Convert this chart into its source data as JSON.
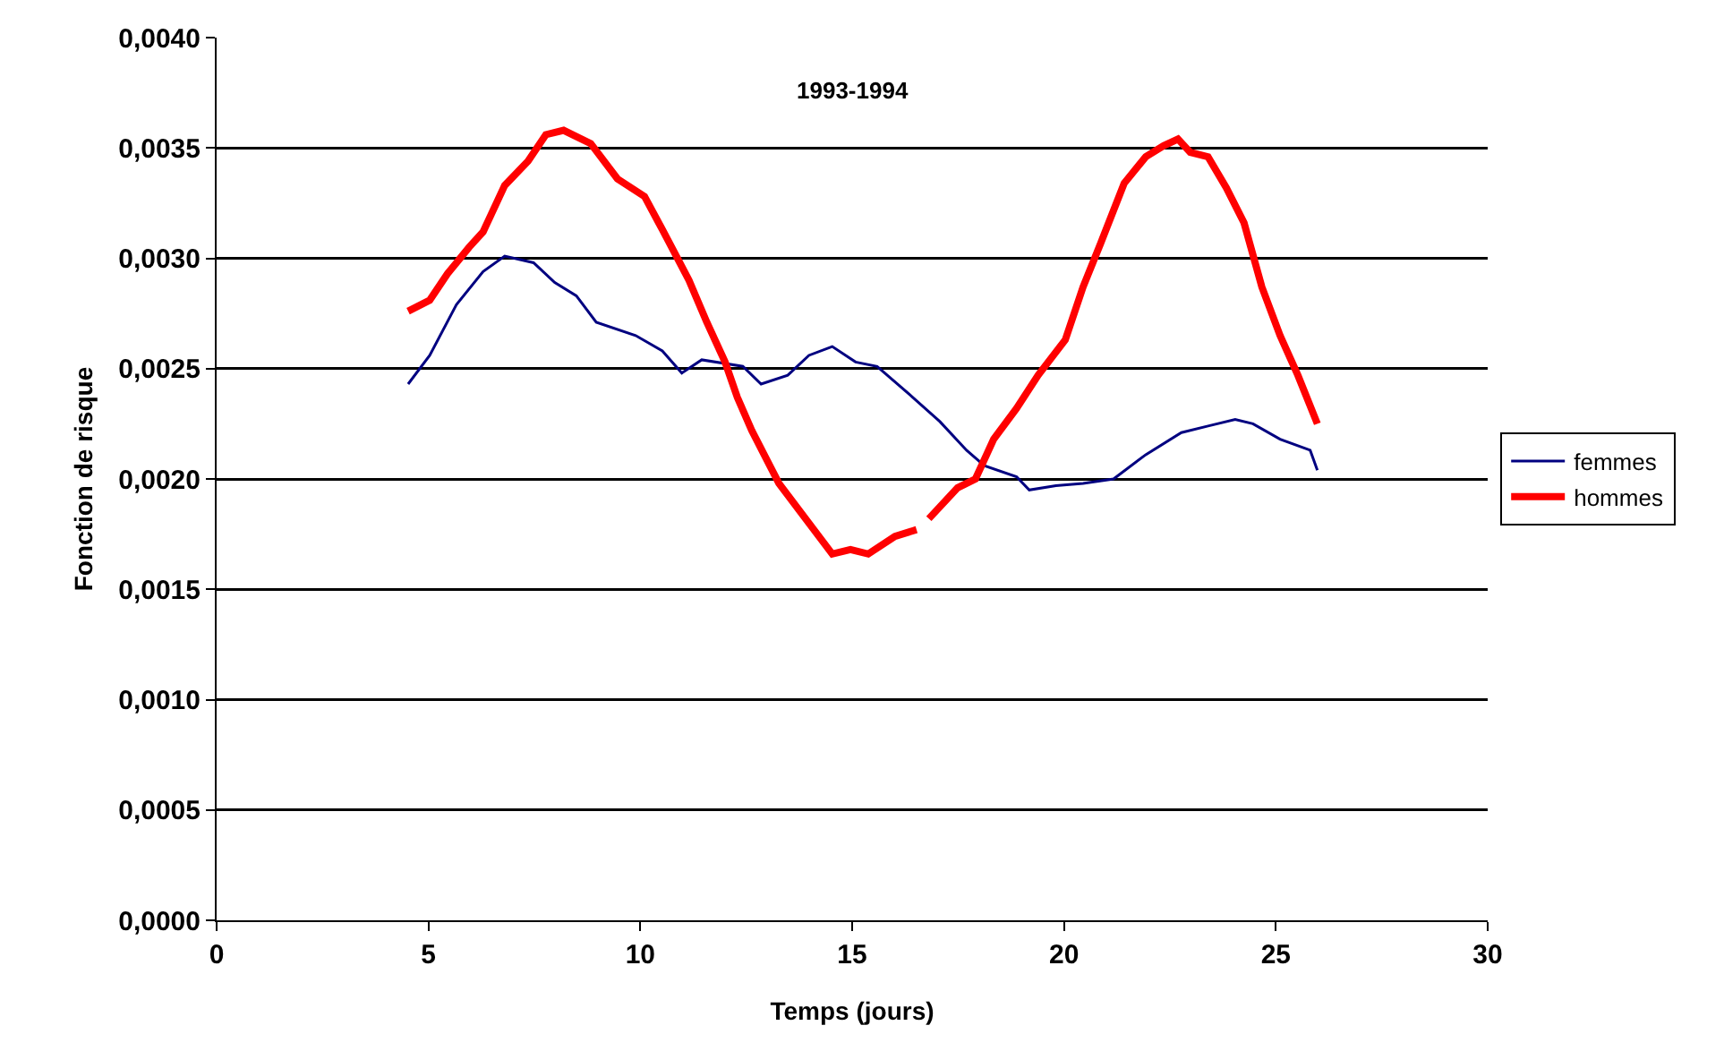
{
  "chart_data": {
    "type": "line",
    "title": "1993-1994",
    "xlabel": "Temps (jours)",
    "ylabel": "Fonction de risque",
    "xlim": [
      0,
      30
    ],
    "xticks": [
      0,
      5,
      10,
      15,
      20,
      25,
      30
    ],
    "ylim": [
      0,
      0.004
    ],
    "yticks": [
      {
        "value": 0,
        "label": "0,0000"
      },
      {
        "value": 0.0005,
        "label": "0,0005"
      },
      {
        "value": 0.001,
        "label": "0,0010"
      },
      {
        "value": 0.0015,
        "label": "0,0015"
      },
      {
        "value": 0.002,
        "label": "0,0020"
      },
      {
        "value": 0.0025,
        "label": "0,0025"
      },
      {
        "value": 0.003,
        "label": "0,0030"
      },
      {
        "value": 0.0035,
        "label": "0,0035"
      },
      {
        "value": 0.004,
        "label": "0,0040"
      }
    ],
    "grid": "y",
    "legend": "right",
    "marker": "none",
    "line_style": "solid",
    "series": [
      {
        "name": "femmes",
        "color": "#000080",
        "x": [
          4.52,
          5.03,
          5.66,
          6.29,
          6.8,
          7.48,
          7.98,
          8.49,
          8.96,
          9.89,
          10.52,
          10.98,
          11.45,
          12.42,
          12.85,
          13.48,
          13.98,
          14.53,
          15.08,
          15.59,
          16.43,
          17.07,
          17.7,
          18.12,
          18.88,
          19.18,
          19.81,
          20.45,
          21.17,
          21.93,
          22.77,
          23.4,
          24.04,
          24.46,
          25.1,
          25.81,
          25.98
        ],
        "values": [
          0.00243,
          0.00256,
          0.00279,
          0.00294,
          0.00301,
          0.00298,
          0.00289,
          0.00283,
          0.00271,
          0.00265,
          0.00258,
          0.00248,
          0.00254,
          0.00251,
          0.00243,
          0.00247,
          0.00256,
          0.0026,
          0.00253,
          0.00251,
          0.00237,
          0.00226,
          0.00213,
          0.00206,
          0.00201,
          0.00195,
          0.00197,
          0.00198,
          0.002,
          0.00211,
          0.00221,
          0.00224,
          0.00227,
          0.00225,
          0.00218,
          0.00213,
          0.00204
        ]
      },
      {
        "name": "hommes",
        "color": "#ff0000",
        "x": [
          4.52,
          5.03,
          5.45,
          5.96,
          6.29,
          6.8,
          7.35,
          7.77,
          8.19,
          8.83,
          9.46,
          10.1,
          10.52,
          11.15,
          11.57,
          12,
          12.29,
          12.63,
          13.27,
          13.9,
          14.53,
          14.96,
          15.38,
          16.01,
          16.52,
          16.66,
          16.81,
          17.49,
          17.91,
          18.34,
          18.88,
          19.39,
          20.03,
          20.45,
          20.87,
          21.42,
          21.93,
          22.35,
          22.69,
          22.98,
          23.4,
          23.83,
          24.25,
          24.67,
          25.1,
          25.52,
          25.98
        ],
        "values": [
          0.00276,
          0.00281,
          0.00293,
          0.00305,
          0.00312,
          0.00333,
          0.00344,
          0.00356,
          0.00358,
          0.00352,
          0.00336,
          0.00328,
          0.00313,
          0.0029,
          0.00271,
          0.00253,
          0.00237,
          0.00222,
          0.00198,
          0.00182,
          0.00166,
          0.00168,
          0.00166,
          0.00174,
          0.00177,
          null,
          0.00182,
          0.00196,
          0.002,
          0.00218,
          0.00232,
          0.00247,
          0.00263,
          0.00287,
          0.00307,
          0.00334,
          0.00346,
          0.00351,
          0.00354,
          0.00348,
          0.00346,
          0.00332,
          0.00316,
          0.00287,
          0.00265,
          0.00247,
          0.00225
        ]
      }
    ]
  }
}
